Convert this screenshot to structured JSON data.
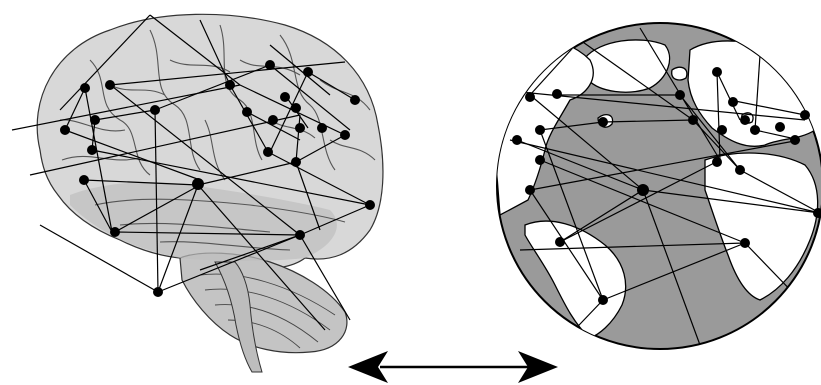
{
  "figure": {
    "left_panel": {
      "subject": "brain",
      "icon": "brain-network-icon"
    },
    "right_panel": {
      "subject": "globe",
      "icon": "globe-network-icon"
    },
    "connector": {
      "icon": "double-headed-arrow-icon"
    },
    "colors": {
      "ink": "#000000",
      "brain_fill": "#d8d8d8",
      "brain_shade": "#a9a9a9",
      "ocean": "#9a9a9a",
      "land": "#ffffff"
    }
  }
}
